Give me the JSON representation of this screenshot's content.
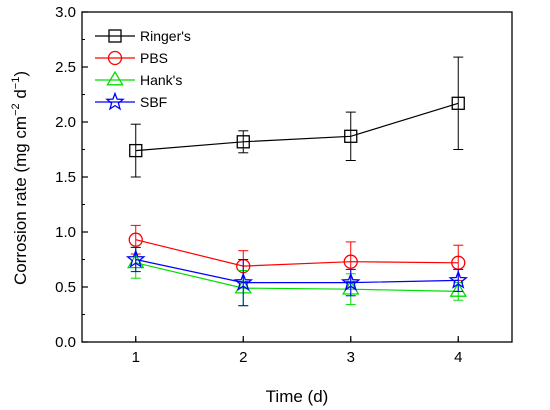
{
  "chart_data": {
    "type": "line",
    "xlabel": "Time (d)",
    "ylabel": {
      "text": "Corrosion rate (mg cm",
      "sup1": "−2",
      "mid": " d",
      "sup2": "−1",
      "end": ")"
    },
    "x": [
      1,
      2,
      3,
      4
    ],
    "xticks": [
      "1",
      "2",
      "3",
      "4"
    ],
    "xlim": [
      0.5,
      4.5
    ],
    "ylim": [
      0.0,
      3.0
    ],
    "yticks": [
      "0.0",
      "0.5",
      "1.0",
      "1.5",
      "2.0",
      "2.5",
      "3.0"
    ],
    "legend_position": "top-left",
    "grid": false,
    "series": [
      {
        "name": "Ringer's",
        "color": "#000000",
        "marker": "square",
        "values": [
          1.74,
          1.82,
          1.87,
          2.17
        ],
        "errors": [
          0.24,
          0.1,
          0.22,
          0.42
        ]
      },
      {
        "name": "PBS",
        "color": "#ff0000",
        "marker": "circle",
        "values": [
          0.93,
          0.69,
          0.73,
          0.72
        ],
        "errors": [
          0.13,
          0.14,
          0.18,
          0.16
        ]
      },
      {
        "name": "Hank's",
        "color": "#00dd00",
        "marker": "triangle",
        "values": [
          0.72,
          0.49,
          0.48,
          0.46
        ],
        "errors": [
          0.14,
          0.16,
          0.14,
          0.08
        ]
      },
      {
        "name": "SBF",
        "color": "#0000ff",
        "marker": "star",
        "values": [
          0.75,
          0.54,
          0.54,
          0.56
        ],
        "errors": [
          0.11,
          0.21,
          0.12,
          0.1
        ]
      }
    ]
  }
}
